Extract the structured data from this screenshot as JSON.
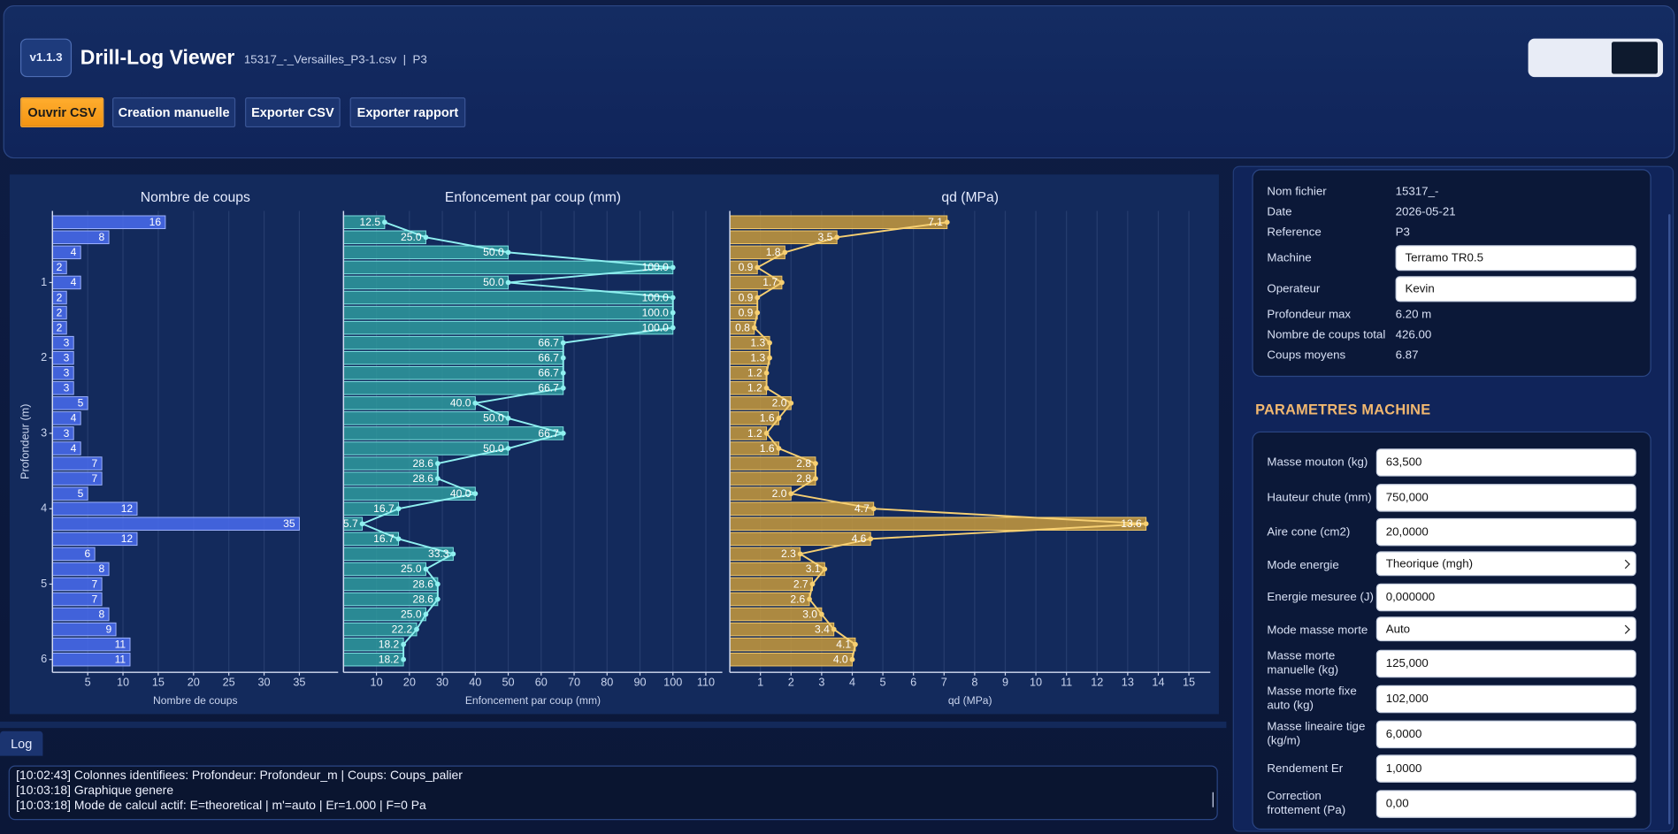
{
  "header": {
    "version": "v1.1.3",
    "title": "Drill-Log Viewer",
    "file": "15317_-_Versailles_P3-1.csv  |  P3"
  },
  "toolbar": {
    "buttons": [
      "Ouvrir CSV",
      "Creation manuelle",
      "Exporter CSV",
      "Exporter rapport"
    ]
  },
  "chart_data": [
    {
      "type": "bar",
      "orientation": "horizontal",
      "title": "Nombre de coups",
      "x_label": "Nombre de coups",
      "y_label": "Profondeur (m)",
      "y": [
        0.2,
        0.4,
        0.6,
        0.8,
        1.0,
        1.2,
        1.4,
        1.6,
        1.8,
        2.0,
        2.2,
        2.4,
        2.6,
        2.8,
        3.0,
        3.2,
        3.4,
        3.6,
        3.8,
        4.0,
        4.2,
        4.4,
        4.6,
        4.8,
        5.0,
        5.2,
        5.4,
        5.6,
        5.8,
        6.0
      ],
      "values": [
        16,
        8,
        4,
        2,
        4,
        2,
        2,
        2,
        3,
        3,
        3,
        3,
        5,
        4,
        3,
        4,
        7,
        7,
        5,
        12,
        35,
        12,
        6,
        8,
        7,
        7,
        8,
        9,
        11,
        11
      ],
      "color": "#4a6cf0",
      "edge_color": "#9fb4ff",
      "xlim": [
        0,
        40.5
      ],
      "xticks": [
        5,
        10,
        15,
        20,
        25,
        30,
        35
      ],
      "ylim": [
        0.05,
        6.17
      ],
      "yticks": [
        1,
        2,
        3,
        4,
        5,
        6
      ],
      "y_inverted": true,
      "grid": true
    },
    {
      "type": "bar-line",
      "orientation": "horizontal",
      "title": "Enfoncement par coup (mm)",
      "x_label": "Enfoncement par coup (mm)",
      "y": [
        0.2,
        0.4,
        0.6,
        0.8,
        1.0,
        1.2,
        1.4,
        1.6,
        1.8,
        2.0,
        2.2,
        2.4,
        2.6,
        2.8,
        3.0,
        3.2,
        3.4,
        3.6,
        3.8,
        4.0,
        4.2,
        4.4,
        4.6,
        4.8,
        5.0,
        5.2,
        5.4,
        5.6,
        5.8,
        6.0
      ],
      "values": [
        12.5,
        25.0,
        50.0,
        100.0,
        50.0,
        100.0,
        100.0,
        100.0,
        66.7,
        66.7,
        66.7,
        66.7,
        40.0,
        50.0,
        66.7,
        50.0,
        28.6,
        28.6,
        40.0,
        16.7,
        5.7,
        16.7,
        33.3,
        25.0,
        28.6,
        28.6,
        25.0,
        22.2,
        18.2,
        18.2
      ],
      "value_labels": [
        "12.5",
        "25.0",
        "50.0",
        "100.0",
        "50.0",
        "100.0",
        "100.0",
        "100.0",
        "66.7",
        "66.7",
        "66.7",
        "66.7",
        "40.0",
        "50.0",
        "66.7",
        "50.0",
        "28.6",
        "28.6",
        "40.0",
        "16.7",
        "5.7",
        "16.7",
        "33.3",
        "25.0",
        "28.6",
        "28.6",
        "25.0",
        "22.2",
        "18.2",
        "18.2"
      ],
      "color": "#2f9a9e",
      "edge_color": "#7fe3e3",
      "line_color": "#8ff0f0",
      "xlim": [
        0,
        115
      ],
      "xticks": [
        10,
        20,
        30,
        40,
        50,
        60,
        70,
        80,
        90,
        100,
        110
      ],
      "ylim": [
        0.05,
        6.17
      ],
      "y_inverted": true,
      "grid": true
    },
    {
      "type": "bar-line",
      "orientation": "horizontal",
      "title": "qd (MPa)",
      "x_label": "qd (MPa)",
      "y": [
        0.2,
        0.4,
        0.6,
        0.8,
        1.0,
        1.2,
        1.4,
        1.6,
        1.8,
        2.0,
        2.2,
        2.4,
        2.6,
        2.8,
        3.0,
        3.2,
        3.4,
        3.6,
        3.8,
        4.0,
        4.2,
        4.4,
        4.6,
        4.8,
        5.0,
        5.2,
        5.4,
        5.6,
        5.8,
        6.0
      ],
      "values": [
        7.1,
        3.5,
        1.8,
        0.9,
        1.7,
        0.9,
        0.9,
        0.8,
        1.3,
        1.3,
        1.2,
        1.2,
        2.0,
        1.6,
        1.2,
        1.6,
        2.8,
        2.8,
        2.0,
        4.7,
        13.6,
        4.6,
        2.3,
        3.1,
        2.7,
        2.6,
        3.0,
        3.4,
        4.1,
        4.0
      ],
      "value_labels": [
        "7.1",
        "3.5",
        "1.8",
        "0.9",
        "1.7",
        "0.9",
        "0.9",
        "0.8",
        "1.3",
        "1.3",
        "1.2",
        "1.2",
        "2.0",
        "1.6",
        "1.2",
        "1.6",
        "2.8",
        "2.8",
        "2.0",
        "4.7",
        "13.6",
        "4.6",
        "2.3",
        "3.1",
        "2.7",
        "2.6",
        "3.0",
        "3.4",
        "4.1",
        "4.0"
      ],
      "color": "#c89a3c",
      "edge_color": "#f3c96a",
      "line_color": "#f6cf72",
      "xlim": [
        0,
        15.7
      ],
      "xticks": [
        1,
        2,
        3,
        4,
        5,
        6,
        7,
        8,
        9,
        10,
        11,
        12,
        13,
        14,
        15
      ],
      "ylim": [
        0.05,
        6.17
      ],
      "y_inverted": true,
      "grid": true
    }
  ],
  "info": {
    "rows": [
      {
        "label": "Nom fichier",
        "value": "15317_-"
      },
      {
        "label": "Date",
        "value": "2026-05-21"
      },
      {
        "label": "Reference",
        "value": "P3"
      },
      {
        "label": "Machine",
        "value": "Terramo TR0.5",
        "input": true
      },
      {
        "label": "Operateur",
        "value": "Kevin",
        "input": true
      },
      {
        "label": "Profondeur max",
        "value": "6.20 m"
      },
      {
        "label": "Nombre de coups total",
        "value": "426.00"
      },
      {
        "label": "Coups moyens",
        "value": "6.87"
      }
    ]
  },
  "params": {
    "title": "PARAMETRES MACHINE",
    "rows": [
      {
        "label": "Masse mouton (kg)",
        "value": "63,500"
      },
      {
        "label": "Hauteur chute (mm)",
        "value": "750,000"
      },
      {
        "label": "Aire cone (cm2)",
        "value": "20,0000"
      },
      {
        "label": "Mode energie",
        "value": "Theorique (mgh)",
        "select": true
      },
      {
        "label": "Energie mesuree (J)",
        "value": "0,000000"
      },
      {
        "label": "Mode masse morte",
        "value": "Auto",
        "select": true
      },
      {
        "label": "Masse morte manuelle (kg)",
        "value": "125,000"
      },
      {
        "label": "Masse morte fixe auto (kg)",
        "value": "102,000"
      },
      {
        "label": "Masse lineaire tige (kg/m)",
        "value": "6,0000"
      },
      {
        "label": "Rendement Er",
        "value": "1,0000"
      },
      {
        "label": "Correction frottement (Pa)",
        "value": "0,00"
      }
    ]
  },
  "log": {
    "tab": "Log",
    "lines": [
      "[10:02:43] Colonnes identifiees: Profondeur: Profondeur_m | Coups: Coups_palier",
      "[10:03:18] Graphique genere",
      "[10:03:18] Mode de calcul actif: E=theoretical | m'=auto | Er=1.000 | F=0 Pa"
    ]
  }
}
